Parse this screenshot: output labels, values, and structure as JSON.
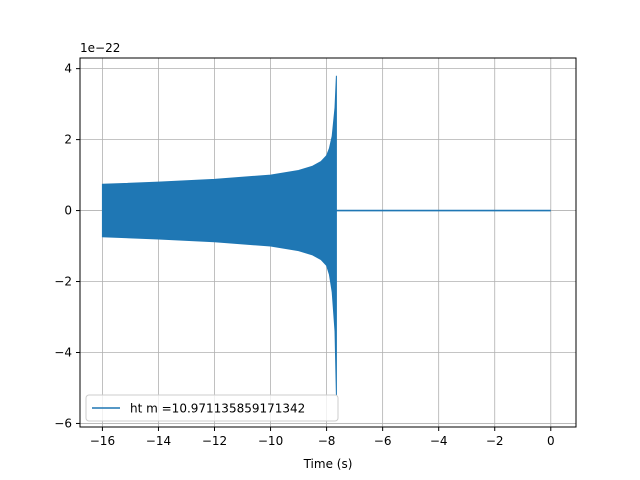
{
  "chart_data": {
    "type": "line",
    "title": "",
    "xlabel": "Time (s)",
    "ylabel": "",
    "y_offset_label": "1e−22",
    "xlim": [
      -16.8,
      0.9
    ],
    "ylim": [
      -6.1,
      4.3
    ],
    "xticks": [
      -16,
      -14,
      -12,
      -10,
      -8,
      -6,
      -4,
      -2,
      0
    ],
    "xtick_labels": [
      "−16",
      "−14",
      "−12",
      "−10",
      "−8",
      "−6",
      "−4",
      "−2",
      "0"
    ],
    "yticks": [
      -6,
      -4,
      -2,
      0,
      2,
      4
    ],
    "ytick_labels": [
      "−6",
      "−4",
      "−2",
      "0",
      "2",
      "4"
    ],
    "grid": true,
    "legend_position": "lower-left",
    "series": [
      {
        "name": "ht m =10.971135859171342",
        "color": "#1f77b4",
        "description_envelope": {
          "start_time": -16.0,
          "merger_time": -7.65,
          "end_time": 0.0,
          "upper": {
            "x": [
              -16.0,
              -14.0,
              -12.0,
              -10.0,
              -9.0,
              -8.5,
              -8.2,
              -8.0,
              -7.9,
              -7.8,
              -7.7,
              -7.65
            ],
            "y": [
              0.74,
              0.8,
              0.88,
              1.0,
              1.13,
              1.25,
              1.38,
              1.55,
              1.75,
              2.1,
              2.9,
              3.8
            ]
          },
          "lower": {
            "x": [
              -16.0,
              -14.0,
              -12.0,
              -10.0,
              -9.0,
              -8.5,
              -8.2,
              -8.0,
              -7.9,
              -7.8,
              -7.7,
              -7.65
            ],
            "y": [
              -0.74,
              -0.8,
              -0.88,
              -1.0,
              -1.13,
              -1.25,
              -1.38,
              -1.55,
              -1.8,
              -2.3,
              -3.4,
              -5.2
            ]
          },
          "post_merger_value": 0.0
        }
      }
    ]
  }
}
